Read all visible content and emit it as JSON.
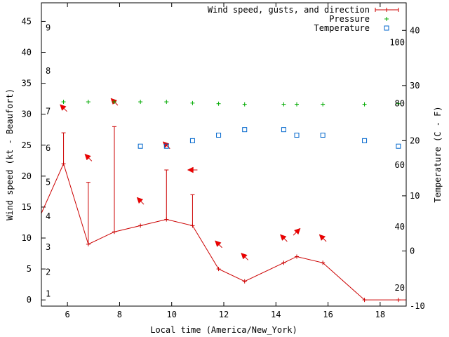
{
  "chart_data": {
    "type": "line",
    "xlabel": "Local time (America/New_York)",
    "ylabel_left": "Wind speed (kt - Beaufort)",
    "ylabel_right": "Temperature (C - F)",
    "xlim": [
      5,
      19
    ],
    "ylim_left": [
      -1,
      48
    ],
    "ylim_right": [
      -10,
      45
    ],
    "x_ticks": [
      6,
      8,
      10,
      12,
      14,
      16,
      18
    ],
    "y_left_ticks": [
      0,
      5,
      10,
      15,
      20,
      25,
      30,
      35,
      40,
      45
    ],
    "y_right_ticks": [
      -10,
      0,
      10,
      20,
      30,
      40
    ],
    "beaufort_labels": [
      {
        "label": "1",
        "kt": 1
      },
      {
        "label": "2",
        "kt": 4.5
      },
      {
        "label": "3",
        "kt": 8.5
      },
      {
        "label": "4",
        "kt": 13.5
      },
      {
        "label": "5",
        "kt": 19
      },
      {
        "label": "6",
        "kt": 24.5
      },
      {
        "label": "7",
        "kt": 30.5
      },
      {
        "label": "8",
        "kt": 37
      },
      {
        "label": "9",
        "kt": 44
      }
    ],
    "fahrenheit_labels": [
      {
        "label": "20",
        "c": -6.7
      },
      {
        "label": "40",
        "c": 4.4
      },
      {
        "label": "60",
        "c": 15.6
      },
      {
        "label": "80",
        "c": 26.7
      },
      {
        "label": "100",
        "c": 37.8
      }
    ],
    "legend": [
      {
        "label": "Wind speed, gusts, and direction",
        "color": "#cc0000",
        "symbol": "plus-errorbar"
      },
      {
        "label": "Pressure",
        "color": "#00aa00",
        "symbol": "plus"
      },
      {
        "label": "Temperature",
        "color": "#0066cc",
        "symbol": "square"
      }
    ],
    "series": [
      {
        "name": "Wind speed, gusts, and direction",
        "color": "#cc0000",
        "x": [
          5.0,
          5.85,
          6.8,
          7.8,
          8.8,
          9.8,
          10.8,
          11.8,
          12.8,
          14.3,
          14.8,
          15.8,
          17.4,
          18.7,
          19.0
        ],
        "wind": [
          14,
          22,
          9,
          11,
          12,
          13,
          12,
          5,
          3,
          6,
          7,
          6,
          0,
          0,
          0
        ],
        "gusts": [
          null,
          27,
          19,
          28,
          null,
          21,
          17,
          null,
          null,
          null,
          null,
          null,
          null,
          null,
          null
        ],
        "marked": [
          false,
          true,
          true,
          true,
          true,
          true,
          true,
          true,
          true,
          true,
          true,
          true,
          true,
          true,
          false
        ]
      },
      {
        "name": "Pressure",
        "color": "#00aa00",
        "x": [
          5.85,
          6.8,
          7.8,
          8.8,
          9.8,
          10.8,
          11.8,
          12.8,
          14.3,
          14.8,
          15.8,
          17.4,
          18.7
        ],
        "y_kt": [
          32,
          32,
          32,
          32,
          32,
          31.8,
          31.7,
          31.6,
          31.6,
          31.6,
          31.6,
          31.6,
          31.7
        ]
      },
      {
        "name": "Temperature",
        "color": "#0066cc",
        "x": [
          8.8,
          9.8,
          10.8,
          11.8,
          12.8,
          14.3,
          14.8,
          15.8,
          17.4,
          18.7
        ],
        "y_c": [
          19,
          19,
          20,
          21,
          22,
          22,
          21,
          21,
          20,
          19
        ]
      }
    ],
    "wind_arrows": [
      {
        "x": 5.85,
        "y_kt": 31,
        "dir": "NW"
      },
      {
        "x": 6.8,
        "y_kt": 23,
        "dir": "NW"
      },
      {
        "x": 7.8,
        "y_kt": 32,
        "dir": "NW"
      },
      {
        "x": 8.8,
        "y_kt": 16,
        "dir": "NW"
      },
      {
        "x": 9.8,
        "y_kt": 25,
        "dir": "NW"
      },
      {
        "x": 10.8,
        "y_kt": 21,
        "dir": "W"
      },
      {
        "x": 11.8,
        "y_kt": 9,
        "dir": "NW"
      },
      {
        "x": 12.8,
        "y_kt": 7,
        "dir": "NW"
      },
      {
        "x": 14.3,
        "y_kt": 10,
        "dir": "NW"
      },
      {
        "x": 14.8,
        "y_kt": 11,
        "dir": "NE"
      },
      {
        "x": 15.8,
        "y_kt": 10,
        "dir": "NW"
      }
    ]
  }
}
